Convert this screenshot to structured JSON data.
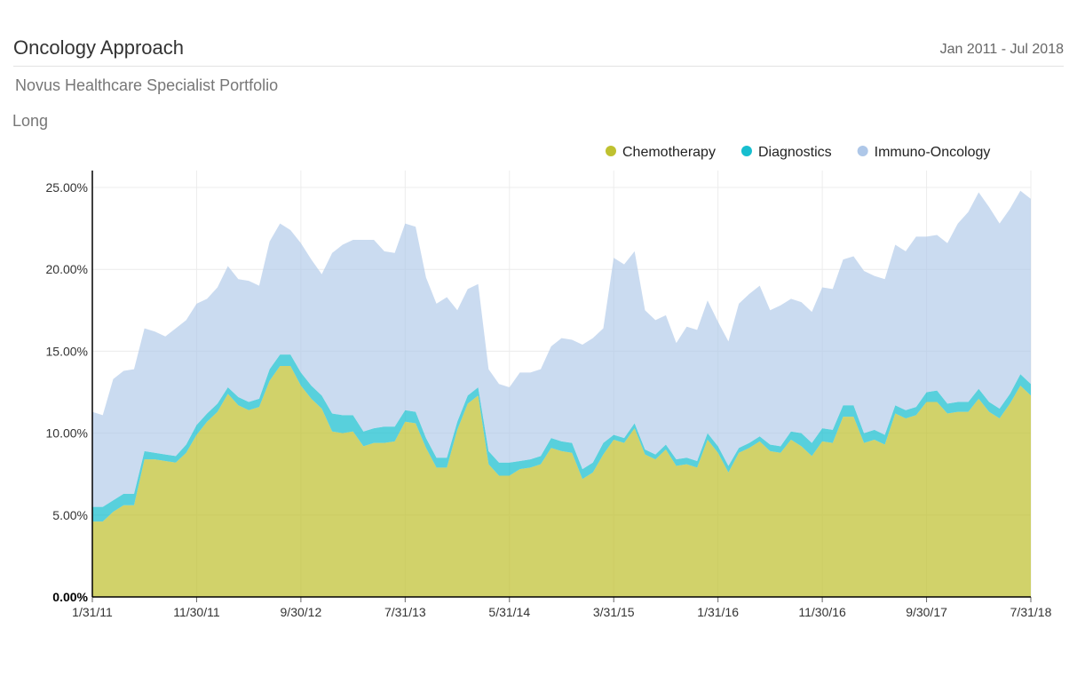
{
  "header": {
    "title": "Oncology Approach",
    "date_range": "Jan 2011 - Jul 2018",
    "subtitle": "Novus Healthcare Specialist Portfolio",
    "position": "Long"
  },
  "chart_data": {
    "type": "area",
    "stacked": true,
    "y_format": "percent",
    "ylim": [
      0,
      25
    ],
    "y_ticks": [
      "0.00%",
      "5.00%",
      "10.00%",
      "15.00%",
      "20.00%",
      "25.00%"
    ],
    "x_tick_labels": [
      "1/31/11",
      "11/30/11",
      "9/30/12",
      "7/31/13",
      "5/31/14",
      "3/31/15",
      "1/31/16",
      "11/30/16",
      "9/30/17",
      "7/31/18"
    ],
    "x_start": "1/31/11",
    "x_end": "7/31/18",
    "grid": true,
    "legend_position": "top-right",
    "series": [
      {
        "name": "Chemotherapy",
        "color": "#bfc130",
        "values": [
          4.6,
          4.6,
          5.2,
          5.6,
          5.6,
          8.4,
          8.4,
          8.3,
          8.2,
          8.8,
          9.9,
          10.7,
          11.3,
          12.4,
          11.7,
          11.4,
          11.6,
          13.2,
          14.1,
          14.1,
          12.9,
          12.1,
          11.5,
          10.1,
          10.0,
          10.1,
          9.2,
          9.4,
          9.4,
          9.5,
          10.7,
          10.6,
          9.1,
          7.9,
          7.9,
          10.2,
          11.8,
          12.3,
          8.1,
          7.4,
          7.4,
          7.8,
          7.9,
          8.1,
          9.1,
          8.9,
          8.8,
          7.2,
          7.6,
          8.7,
          9.6,
          9.4,
          10.3,
          8.7,
          8.4,
          9.0,
          8.0,
          8.1,
          7.9,
          9.6,
          8.8,
          7.6,
          8.8,
          9.1,
          9.5,
          8.9,
          8.8,
          9.6,
          9.2,
          8.6,
          9.5,
          9.4,
          11.0,
          11.0,
          9.4,
          9.6,
          9.3,
          11.2,
          10.9,
          11.1,
          11.9,
          11.9,
          11.2,
          11.3,
          11.3,
          12.1,
          11.3,
          10.9,
          11.8,
          12.9,
          12.3
        ]
      },
      {
        "name": "Diagnostics",
        "color": "#17becf",
        "values": [
          0.9,
          0.9,
          0.7,
          0.7,
          0.7,
          0.5,
          0.4,
          0.4,
          0.4,
          0.5,
          0.6,
          0.5,
          0.5,
          0.4,
          0.5,
          0.5,
          0.5,
          0.7,
          0.7,
          0.7,
          0.8,
          0.8,
          0.8,
          1.1,
          1.1,
          1.0,
          0.9,
          0.9,
          1.0,
          0.9,
          0.7,
          0.7,
          0.6,
          0.6,
          0.6,
          0.5,
          0.5,
          0.5,
          0.8,
          0.8,
          0.8,
          0.5,
          0.5,
          0.5,
          0.6,
          0.6,
          0.6,
          0.6,
          0.6,
          0.7,
          0.3,
          0.3,
          0.3,
          0.3,
          0.3,
          0.3,
          0.4,
          0.4,
          0.4,
          0.4,
          0.4,
          0.4,
          0.3,
          0.3,
          0.3,
          0.4,
          0.4,
          0.5,
          0.8,
          0.8,
          0.8,
          0.8,
          0.7,
          0.7,
          0.6,
          0.6,
          0.6,
          0.5,
          0.5,
          0.5,
          0.6,
          0.7,
          0.6,
          0.6,
          0.6,
          0.6,
          0.6,
          0.6,
          0.6,
          0.7,
          0.7
        ]
      },
      {
        "name": "Immuno-Oncology",
        "color": "#aec7e8",
        "values": [
          5.8,
          5.6,
          7.4,
          7.5,
          7.6,
          7.5,
          7.4,
          7.2,
          7.8,
          7.6,
          7.4,
          7.0,
          7.1,
          7.4,
          7.2,
          7.4,
          6.9,
          7.8,
          8.0,
          7.6,
          7.9,
          7.7,
          7.4,
          9.8,
          10.4,
          10.7,
          11.7,
          11.5,
          10.7,
          10.6,
          11.4,
          11.3,
          9.8,
          9.4,
          9.8,
          6.8,
          6.5,
          6.3,
          5.0,
          4.8,
          4.6,
          5.4,
          5.3,
          5.3,
          5.6,
          6.3,
          6.3,
          7.6,
          7.6,
          7.0,
          10.8,
          10.6,
          10.5,
          8.5,
          8.2,
          7.9,
          7.1,
          8.0,
          8.0,
          8.1,
          7.6,
          7.6,
          8.8,
          9.1,
          9.2,
          8.2,
          8.6,
          8.1,
          8.0,
          8.0,
          8.6,
          8.6,
          8.9,
          9.1,
          9.9,
          9.4,
          9.5,
          9.8,
          9.7,
          10.4,
          9.5,
          9.5,
          9.8,
          10.9,
          11.6,
          12.0,
          11.9,
          11.3,
          11.3,
          11.2,
          11.3
        ]
      }
    ]
  }
}
